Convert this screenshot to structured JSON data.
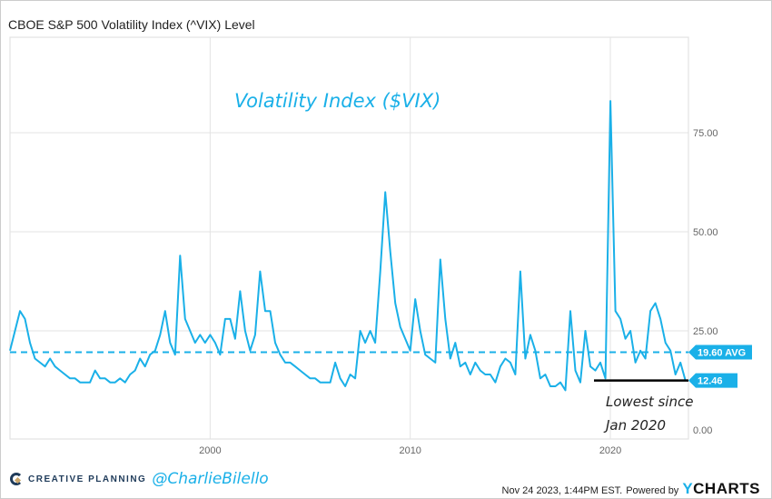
{
  "chart_data": {
    "type": "line",
    "title": "CBOE S&P 500 Volatility Index (^VIX) Level",
    "annotation_title": "Volatility Index ($VIX)",
    "annotation_low": [
      "Lowest since",
      "Jan 2020"
    ],
    "x_ticks": [
      "2000",
      "2010",
      "2020"
    ],
    "y_ticks": [
      "0.00",
      "25.00",
      "50.00",
      "75.00"
    ],
    "xlim": [
      1990,
      2023.9
    ],
    "ylim": [
      0,
      95
    ],
    "grid": true,
    "line_color": "#1ab0e8",
    "average": {
      "value": 19.6,
      "label": "19.60 AVG"
    },
    "last": {
      "value": 12.46,
      "label": "12.46"
    },
    "x_start": 1990,
    "x_step_years": 0.25,
    "values": [
      20,
      25,
      30,
      28,
      22,
      18,
      17,
      16,
      18,
      16,
      15,
      14,
      13,
      13,
      12,
      12,
      12,
      15,
      13,
      13,
      12,
      12,
      13,
      12,
      14,
      15,
      18,
      16,
      19,
      20,
      24,
      30,
      22,
      19,
      44,
      28,
      25,
      22,
      24,
      22,
      24,
      22,
      19,
      28,
      28,
      23,
      35,
      25,
      20,
      24,
      40,
      30,
      30,
      22,
      19,
      17,
      17,
      16,
      15,
      14,
      13,
      13,
      12,
      12,
      12,
      17,
      13,
      11,
      14,
      13,
      25,
      22,
      25,
      22,
      40,
      60,
      45,
      32,
      26,
      23,
      20,
      33,
      25,
      19,
      18,
      17,
      43,
      28,
      18,
      22,
      16,
      17,
      14,
      17,
      15,
      14,
      14,
      12,
      16,
      18,
      17,
      14,
      40,
      18,
      24,
      20,
      13,
      14,
      11,
      11,
      12,
      10,
      30,
      15,
      12,
      25,
      16,
      15,
      17,
      13,
      83,
      30,
      28,
      23,
      25,
      17,
      20,
      18,
      30,
      32,
      28,
      22,
      20,
      14,
      17,
      12.46
    ]
  },
  "footer": {
    "brand": "CREATIVE PLANNING",
    "handle": "@CharlieBilello",
    "timestamp": "Nov 24 2023, 1:44PM EST.",
    "powered": "Powered by",
    "ycharts_y": "Y",
    "ycharts_rest": "CHARTS"
  }
}
